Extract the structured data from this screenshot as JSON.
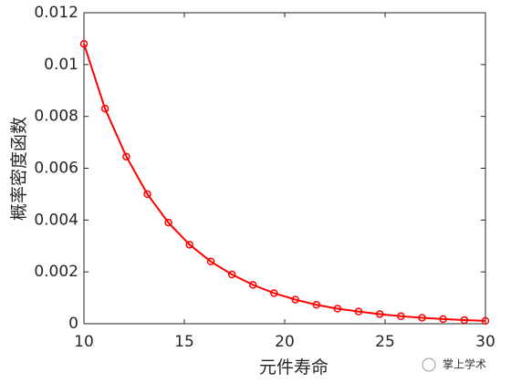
{
  "chart_data": {
    "type": "line",
    "xlabel": "元件寿命",
    "ylabel": "概率密度函数",
    "x": [
      10,
      11.05,
      12.11,
      13.16,
      14.21,
      15.26,
      16.32,
      17.37,
      18.42,
      19.47,
      20.53,
      21.58,
      22.63,
      23.68,
      24.74,
      25.79,
      26.84,
      27.89,
      28.95,
      30
    ],
    "series": [
      {
        "color": "#ff0000",
        "values": [
          0.0108,
          0.0083,
          0.00645,
          0.005,
          0.0039,
          0.00305,
          0.0024,
          0.0019,
          0.0015,
          0.00118,
          0.00093,
          0.00073,
          0.00058,
          0.00047,
          0.00037,
          0.00029,
          0.00023,
          0.00018,
          0.00014,
          0.00011
        ]
      }
    ],
    "xlim": [
      10,
      30
    ],
    "xticks": [
      10,
      15,
      20,
      25,
      30
    ],
    "ylim": [
      0,
      0.012
    ],
    "yticks": [
      0,
      0.002,
      0.004,
      0.006,
      0.008,
      0.01,
      0.012
    ]
  },
  "watermark": "掌上学术"
}
